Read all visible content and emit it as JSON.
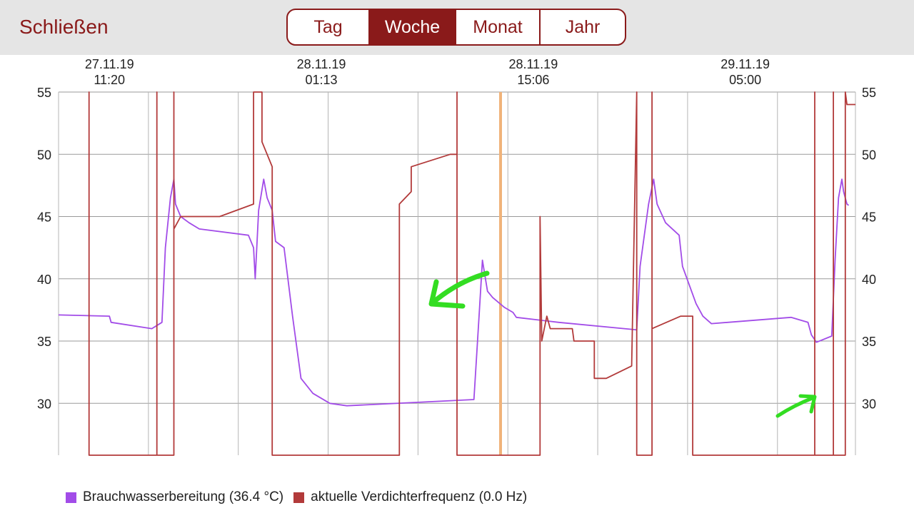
{
  "header": {
    "close_label": "Schließen",
    "tabs": [
      {
        "label": "Tag",
        "active": false
      },
      {
        "label": "Woche",
        "active": true
      },
      {
        "label": "Monat",
        "active": false
      },
      {
        "label": "Jahr",
        "active": false
      }
    ]
  },
  "colors": {
    "accent": "#8a1a1a",
    "purple_series": "#a24ce8",
    "red_series": "#b23a3a",
    "cursor_line": "#f0b37a",
    "annotation_arrow": "#33dd22"
  },
  "chart_data": {
    "type": "line",
    "x_ticks": [
      {
        "date": "27.11.19",
        "time": "11:20"
      },
      {
        "date": "28.11.19",
        "time": "01:13"
      },
      {
        "date": "28.11.19",
        "time": "15:06"
      },
      {
        "date": "29.11.19",
        "time": "05:00"
      }
    ],
    "y_ticks": [
      30,
      35,
      40,
      45,
      50,
      55
    ],
    "ylim": [
      26,
      55
    ],
    "grid": true,
    "legend_position": "bottom-left",
    "series": [
      {
        "name": "Brauchwasserbereitung (36.4 °C)",
        "color": "#a24ce8",
        "points": [
          [
            0,
            37.1
          ],
          [
            3.0,
            37.0
          ],
          [
            3.1,
            36.5
          ],
          [
            5.5,
            36.0
          ],
          [
            6.1,
            36.5
          ],
          [
            6.3,
            42.5
          ],
          [
            6.6,
            46.5
          ],
          [
            6.8,
            48.0
          ],
          [
            6.9,
            46.0
          ],
          [
            7.2,
            45.0
          ],
          [
            7.7,
            44.5
          ],
          [
            8.3,
            44.0
          ],
          [
            11.2,
            43.5
          ],
          [
            11.5,
            42.5
          ],
          [
            11.6,
            40.0
          ],
          [
            11.8,
            45.5
          ],
          [
            12.1,
            48.0
          ],
          [
            12.3,
            46.5
          ],
          [
            12.6,
            45.5
          ],
          [
            12.8,
            43.0
          ],
          [
            13.3,
            42.5
          ],
          [
            13.8,
            37.0
          ],
          [
            14.3,
            32.0
          ],
          [
            15.0,
            30.8
          ],
          [
            16.0,
            30.0
          ],
          [
            17.0,
            29.8
          ],
          [
            24.5,
            30.3
          ],
          [
            24.8,
            37.0
          ],
          [
            25.0,
            41.5
          ],
          [
            25.3,
            39.0
          ],
          [
            25.6,
            38.5
          ],
          [
            26.3,
            37.7
          ],
          [
            26.8,
            37.3
          ],
          [
            27.0,
            36.9
          ],
          [
            29.5,
            36.5
          ],
          [
            34.1,
            35.9
          ],
          [
            34.3,
            41.0
          ],
          [
            34.8,
            46.0
          ],
          [
            35.1,
            48.0
          ],
          [
            35.3,
            46.0
          ],
          [
            35.8,
            44.5
          ],
          [
            36.6,
            43.5
          ],
          [
            36.8,
            41.0
          ],
          [
            37.6,
            38.0
          ],
          [
            38.0,
            37.0
          ],
          [
            38.5,
            36.4
          ],
          [
            43.2,
            36.9
          ],
          [
            44.2,
            36.5
          ],
          [
            44.4,
            35.5
          ],
          [
            44.7,
            34.9
          ],
          [
            45.6,
            35.4
          ],
          [
            45.8,
            41.5
          ],
          [
            46.0,
            46.5
          ],
          [
            46.2,
            48.0
          ],
          [
            46.3,
            47.0
          ],
          [
            46.5,
            46.0
          ],
          [
            46.6,
            45.9
          ]
        ]
      },
      {
        "name": "aktuelle Verdichterfrequenz (0.0 Hz)",
        "color": "#b23a3a",
        "points": [
          [
            1.8,
            0
          ],
          [
            1.8,
            55
          ],
          [
            1.8,
            0
          ],
          [
            5.8,
            0
          ],
          [
            5.8,
            55
          ],
          [
            5.8,
            0
          ],
          [
            6.8,
            0
          ],
          [
            6.8,
            55
          ],
          [
            6.8,
            44
          ],
          [
            7.2,
            45
          ],
          [
            9.5,
            45
          ],
          [
            11.5,
            46
          ],
          [
            11.5,
            55
          ],
          [
            12.0,
            55
          ],
          [
            12.0,
            51
          ],
          [
            12.6,
            49
          ],
          [
            12.6,
            0
          ],
          [
            20.1,
            0
          ],
          [
            20.1,
            46
          ],
          [
            20.8,
            47
          ],
          [
            20.8,
            49
          ],
          [
            23.1,
            50
          ],
          [
            23.5,
            50
          ],
          [
            23.5,
            55
          ],
          [
            23.5,
            0
          ],
          [
            28.4,
            0
          ],
          [
            28.4,
            45
          ],
          [
            28.5,
            35
          ],
          [
            28.8,
            37
          ],
          [
            29.0,
            36
          ],
          [
            30.3,
            36
          ],
          [
            30.4,
            35
          ],
          [
            31.6,
            35
          ],
          [
            31.6,
            32
          ],
          [
            32.3,
            32
          ],
          [
            33.8,
            33
          ],
          [
            34.1,
            55
          ],
          [
            34.1,
            0
          ],
          [
            35.0,
            0
          ],
          [
            35.0,
            55
          ],
          [
            35.0,
            36
          ],
          [
            36.7,
            37
          ],
          [
            37.4,
            37
          ],
          [
            37.4,
            0
          ],
          [
            44.6,
            0
          ],
          [
            44.6,
            55
          ],
          [
            44.6,
            0
          ],
          [
            45.7,
            0
          ],
          [
            45.7,
            55
          ],
          [
            45.7,
            0
          ],
          [
            46.4,
            0
          ],
          [
            46.4,
            55
          ],
          [
            46.5,
            54
          ],
          [
            47.0,
            54
          ]
        ]
      }
    ]
  }
}
